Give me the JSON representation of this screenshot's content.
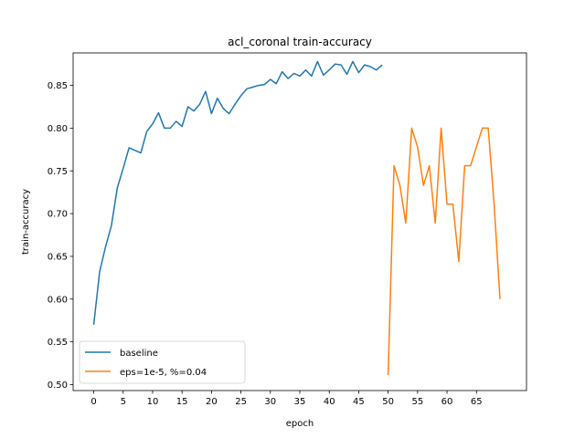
{
  "chart_data": {
    "type": "line",
    "title": "acl_coronal train-accuracy",
    "xlabel": "epoch",
    "ylabel": "train-accuracy",
    "xlim": [
      -3.5,
      73.5
    ],
    "ylim": [
      0.493,
      0.888
    ],
    "xticks": [
      0,
      5,
      10,
      15,
      20,
      25,
      30,
      35,
      40,
      45,
      50,
      55,
      60,
      65
    ],
    "yticks": [
      0.5,
      0.55,
      0.6,
      0.65,
      0.7,
      0.75,
      0.8,
      0.85
    ],
    "ytick_labels": [
      "0.50",
      "0.55",
      "0.60",
      "0.65",
      "0.70",
      "0.75",
      "0.80",
      "0.85"
    ],
    "grid": false,
    "legend_position": "lower-left",
    "series": [
      {
        "name": "baseline",
        "color": "#1f77b4",
        "x": [
          0,
          1,
          2,
          3,
          4,
          5,
          6,
          7,
          8,
          9,
          10,
          11,
          12,
          13,
          14,
          15,
          16,
          17,
          18,
          19,
          20,
          21,
          22,
          23,
          24,
          25,
          26,
          27,
          28,
          29,
          30,
          31,
          32,
          33,
          34,
          35,
          36,
          37,
          38,
          39,
          40,
          41,
          42,
          43,
          44,
          45,
          46,
          47,
          48,
          49
        ],
        "y": [
          0.57,
          0.632,
          0.661,
          0.686,
          0.73,
          0.753,
          0.777,
          0.774,
          0.771,
          0.796,
          0.805,
          0.818,
          0.8,
          0.8,
          0.808,
          0.802,
          0.825,
          0.82,
          0.828,
          0.843,
          0.817,
          0.835,
          0.823,
          0.817,
          0.828,
          0.838,
          0.846,
          0.848,
          0.85,
          0.851,
          0.857,
          0.852,
          0.866,
          0.858,
          0.864,
          0.861,
          0.868,
          0.861,
          0.878,
          0.862,
          0.868,
          0.875,
          0.874,
          0.863,
          0.878,
          0.865,
          0.874,
          0.872,
          0.868,
          0.874
        ]
      },
      {
        "name": "eps=1e-5, %=0.04",
        "color": "#ff7f0e",
        "x": [
          50,
          51,
          52,
          53,
          54,
          55,
          56,
          57,
          58,
          59,
          60,
          61,
          62,
          63,
          64,
          65,
          66,
          67,
          68,
          69
        ],
        "y": [
          0.511,
          0.756,
          0.733,
          0.689,
          0.8,
          0.778,
          0.733,
          0.756,
          0.689,
          0.8,
          0.711,
          0.711,
          0.644,
          0.756,
          0.756,
          0.778,
          0.8,
          0.8,
          0.711,
          0.6
        ]
      }
    ]
  }
}
